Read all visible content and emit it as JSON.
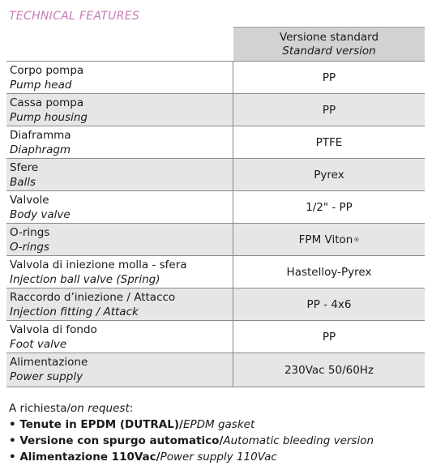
{
  "section_title": "TECHNICAL FEATURES",
  "header": {
    "col_main": "Versione standard",
    "col_sub": "Standard version"
  },
  "rows": [
    {
      "label_it": "Corpo pompa",
      "label_en": "Pump head",
      "value": "PP"
    },
    {
      "label_it": "Cassa pompa",
      "label_en": "Pump housing",
      "value": "PP"
    },
    {
      "label_it": "Diaframma",
      "label_en": "Diaphragm",
      "value": "PTFE"
    },
    {
      "label_it": "Sfere",
      "label_en": "Balls",
      "value": "Pyrex"
    },
    {
      "label_it": "Valvole",
      "label_en": "Body valve",
      "value": "1/2\" - PP"
    },
    {
      "label_it": "O-rings",
      "label_en": "O-rings",
      "value": "FPM Viton",
      "value_sup": "®"
    },
    {
      "label_it": "Valvola di iniezione molla - sfera",
      "label_en": "Injection ball valve (Spring)",
      "value": "Hastelloy-Pyrex"
    },
    {
      "label_it": "Raccordo d’iniezione / Attacco",
      "label_en": "Injection fitting / Attack",
      "value": "PP - 4x6"
    },
    {
      "label_it": "Valvola di fondo",
      "label_en": "Foot valve",
      "value": "PP"
    },
    {
      "label_it": "Alimentazione",
      "label_en": "Power supply",
      "value": "230Vac 50/60Hz"
    }
  ],
  "notes": {
    "intro_it": "A richiesta/",
    "intro_en": "on request",
    "intro_colon": ":",
    "items": [
      {
        "bullet": "• ",
        "it": "Tenute in EPDM (DUTRAL)/",
        "en": "EPDM gasket"
      },
      {
        "bullet": "• ",
        "it": "Versione con spurgo automatico/",
        "en": "Automatic bleeding version"
      },
      {
        "bullet": "• ",
        "it": "Alimentazione 110Vac/",
        "en": "Power supply 110Vac"
      }
    ]
  }
}
